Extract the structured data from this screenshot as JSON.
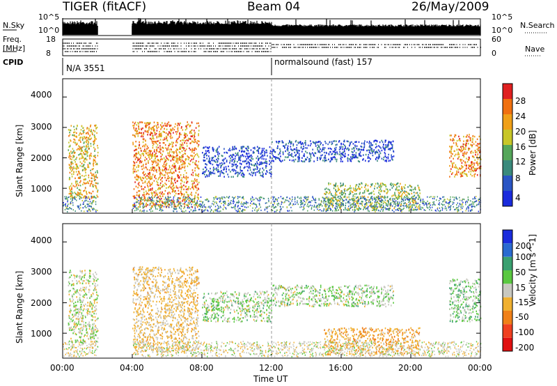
{
  "header": {
    "station": "TIGER (fitACF)",
    "beam": "Beam 04",
    "date": "26/May/2009"
  },
  "strip_labels": {
    "nsky": "N.Sky",
    "nsearch": "N.Search",
    "freq_line1": "Freq.",
    "freq_line2": "[MHz]",
    "nave": "Nave",
    "cpid": "CPID",
    "nsky_ticks": [
      "10^5",
      "10^0"
    ],
    "nsearch_ticks": [
      "10^5",
      "10^0"
    ],
    "freq_ticks": [
      "18",
      "8"
    ],
    "nave_ticks": [
      "60",
      "0"
    ]
  },
  "cpid_segments": [
    {
      "label": "N/A 3551",
      "start_hour": 0
    },
    {
      "label": "normalsound (fast) 157",
      "start_hour": 12
    }
  ],
  "axes": {
    "xlabel": "Time UT",
    "ylabel": "Slant Range [km]",
    "xticks": [
      "00:00",
      "04:00",
      "08:00",
      "12:00",
      "16:00",
      "20:00",
      "00:00"
    ],
    "yticks": [
      "1000",
      "2000",
      "3000",
      "4000"
    ]
  },
  "chart_data": [
    {
      "type": "heatmap",
      "title": "",
      "xlabel": "",
      "ylabel": "Slant Range [km]",
      "x_range_hours": [
        0,
        24
      ],
      "ylim": [
        180,
        4600
      ],
      "colorbar": {
        "label": "Power [dB]",
        "ticks": [
          "4",
          "8",
          "12",
          "16",
          "20",
          "24",
          "28"
        ],
        "colors": [
          "#1a2bdc",
          "#2a55c4",
          "#3a8a7c",
          "#55a65a",
          "#c8c628",
          "#f0a018",
          "#f07010",
          "#e02020"
        ]
      },
      "scatter_regions": [
        {
          "start_hour": 0.3,
          "end_hour": 2.0,
          "range_km": [
            700,
            3100
          ],
          "power_db": 22
        },
        {
          "start_hour": 4.0,
          "end_hour": 7.8,
          "range_km": [
            400,
            3200
          ],
          "power_db": 26
        },
        {
          "start_hour": 8.0,
          "end_hour": 12.0,
          "range_km": [
            1400,
            2400
          ],
          "power_db": 6
        },
        {
          "start_hour": 12.0,
          "end_hour": 19.0,
          "range_km": [
            1900,
            2600
          ],
          "power_db": 6
        },
        {
          "start_hour": 15.0,
          "end_hour": 20.5,
          "range_km": [
            300,
            1200
          ],
          "power_db": 18
        },
        {
          "start_hour": 22.2,
          "end_hour": 24.0,
          "range_km": [
            1400,
            2800
          ],
          "power_db": 26
        }
      ]
    },
    {
      "type": "heatmap",
      "title": "",
      "xlabel": "Time UT",
      "ylabel": "Slant Range [km]",
      "x_range_hours": [
        0,
        24
      ],
      "ylim": [
        180,
        4600
      ],
      "colorbar": {
        "label": "Velocity [m s^-1]",
        "ticks": [
          "200",
          "100",
          "50",
          "15",
          "-15",
          "-50",
          "-100",
          "-200"
        ],
        "colors": [
          "#1a2bdc",
          "#2a6ad0",
          "#3aa070",
          "#5ac840",
          "#c8c8c0",
          "#f0b030",
          "#f08018",
          "#f04020",
          "#e01010"
        ]
      },
      "scatter_regions": [
        {
          "start_hour": 0.3,
          "end_hour": 2.0,
          "range_km": [
            700,
            3100
          ],
          "velocity_ms": -10
        },
        {
          "start_hour": 4.0,
          "end_hour": 7.8,
          "range_km": [
            400,
            3200
          ],
          "velocity_ms": -40
        },
        {
          "start_hour": 8.0,
          "end_hour": 12.0,
          "range_km": [
            1400,
            2400
          ],
          "velocity_ms": 0
        },
        {
          "start_hour": 12.0,
          "end_hour": 19.0,
          "range_km": [
            1900,
            2600
          ],
          "velocity_ms": 0
        },
        {
          "start_hour": 15.0,
          "end_hour": 20.5,
          "range_km": [
            300,
            1200
          ],
          "velocity_ms": -60
        },
        {
          "start_hour": 22.2,
          "end_hour": 24.0,
          "range_km": [
            1400,
            2800
          ],
          "velocity_ms": 10
        }
      ]
    }
  ]
}
